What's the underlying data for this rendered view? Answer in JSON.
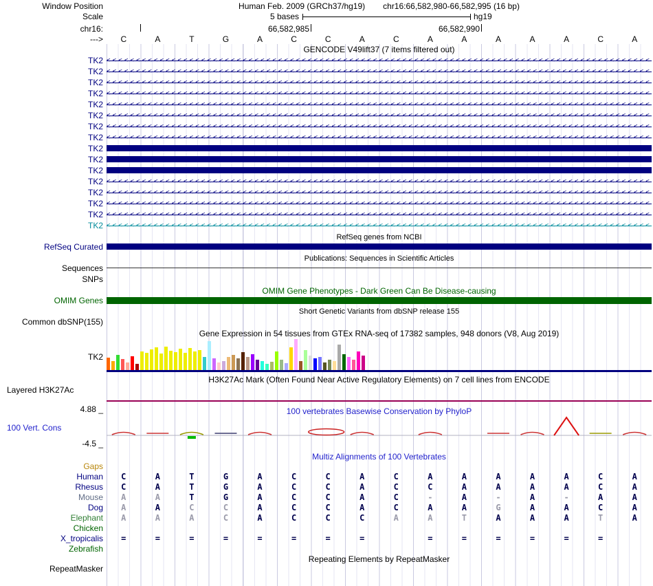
{
  "header": {
    "window_position_label": "Window Position",
    "assembly_title": "Human Feb. 2009 (GRCh37/hg19)",
    "position": "chr16:66,582,980-66,582,995 (16 bp)",
    "scale_label": "Scale",
    "scale_value": "5 bases",
    "assembly_short": "hg19",
    "chrom_label": "chr16:",
    "strand_label": "--->",
    "tick_labels": [
      "66,582,985",
      "66,582,990"
    ]
  },
  "columns": 16,
  "ruler_bases": [
    "C",
    "A",
    "T",
    "G",
    "A",
    "C",
    "C",
    "A",
    "C",
    "A",
    "A",
    "A",
    "A",
    "A",
    "C",
    "A"
  ],
  "colors": {
    "navy": "#000080",
    "teal": "#008b9b",
    "omim_green": "#006400",
    "title_blue": "#2222cc",
    "h3k27ac_line": "#990055",
    "gaps_label": "#b8860b",
    "letter": "#00004d",
    "letter_muted": "#9a9aaa"
  },
  "gencode": {
    "title": "GENCODE V49lift37 (7 items filtered out)",
    "rows": [
      {
        "label": "TK2",
        "style": "arrows",
        "color": "#000080"
      },
      {
        "label": "TK2",
        "style": "arrows",
        "color": "#000080"
      },
      {
        "label": "TK2",
        "style": "arrows",
        "color": "#000080"
      },
      {
        "label": "TK2",
        "style": "arrows",
        "color": "#000080"
      },
      {
        "label": "TK2",
        "style": "arrows",
        "color": "#000080"
      },
      {
        "label": "TK2",
        "style": "arrows",
        "color": "#000080"
      },
      {
        "label": "TK2",
        "style": "arrows",
        "color": "#000080"
      },
      {
        "label": "TK2",
        "style": "arrows",
        "color": "#000080"
      },
      {
        "label": "TK2",
        "style": "bar",
        "color": "#000080"
      },
      {
        "label": "TK2",
        "style": "bar",
        "color": "#000080"
      },
      {
        "label": "TK2",
        "style": "bar",
        "color": "#000080"
      },
      {
        "label": "TK2",
        "style": "arrows",
        "color": "#000080"
      },
      {
        "label": "TK2",
        "style": "arrows",
        "color": "#000080"
      },
      {
        "label": "TK2",
        "style": "arrows",
        "color": "#000080"
      },
      {
        "label": "TK2",
        "style": "arrows",
        "color": "#000080"
      },
      {
        "label": "TK2",
        "style": "arrows",
        "color": "#008b9b"
      }
    ]
  },
  "tracks": {
    "refseq": {
      "title": "RefSeq genes from NCBI",
      "label": "RefSeq Curated",
      "bar_color": "#000080"
    },
    "publications": {
      "title": "Publications: Sequences in Scientific Articles",
      "label": "Sequences"
    },
    "snps": {
      "label": "SNPs"
    },
    "omim": {
      "title": "OMIM Gene Phenotypes - Dark Green Can Be Disease-causing",
      "label": "OMIM Genes",
      "bar_color": "#006400"
    },
    "dbsnp": {
      "title": "Short Genetic Variants from dbSNP release 155",
      "label": "Common dbSNP(155)"
    },
    "gtex": {
      "title": "Gene Expression in 54 tissues from GTEx RNA-seq of 17382 samples, 948 donors (V8, Aug 2019)",
      "label": "TK2",
      "bars": [
        [
          18,
          "#FF6600"
        ],
        [
          13,
          "#FFAA00"
        ],
        [
          22,
          "#33DD33"
        ],
        [
          16,
          "#FF5555"
        ],
        [
          11,
          "#FFAA99"
        ],
        [
          20,
          "#FF0000"
        ],
        [
          9,
          "#AA0000"
        ],
        [
          27,
          "#EEEE00"
        ],
        [
          25,
          "#EEEE00"
        ],
        [
          30,
          "#EEEE00"
        ],
        [
          33,
          "#EEEE00"
        ],
        [
          24,
          "#EEEE00"
        ],
        [
          34,
          "#EEEE00"
        ],
        [
          28,
          "#EEEE00"
        ],
        [
          26,
          "#EEEE00"
        ],
        [
          31,
          "#EEEE00"
        ],
        [
          25,
          "#EEEE00"
        ],
        [
          32,
          "#EEEE00"
        ],
        [
          27,
          "#EEEE00"
        ],
        [
          29,
          "#EEEE00"
        ],
        [
          19,
          "#33CCCC"
        ],
        [
          42,
          "#AAEEFF"
        ],
        [
          17,
          "#CC66FF"
        ],
        [
          11,
          "#FFCCCC"
        ],
        [
          13,
          "#CCAADD"
        ],
        [
          19,
          "#EEBB77"
        ],
        [
          22,
          "#CC9955"
        ],
        [
          17,
          "#8B7355"
        ],
        [
          26,
          "#552200"
        ],
        [
          19,
          "#BB9988"
        ],
        [
          23,
          "#9900FF"
        ],
        [
          15,
          "#660099"
        ],
        [
          13,
          "#22FFDD"
        ],
        [
          9,
          "#33FFC2"
        ],
        [
          12,
          "#AABB66"
        ],
        [
          27,
          "#99FF00"
        ],
        [
          15,
          "#99BB88"
        ],
        [
          10,
          "#AAAAFF"
        ],
        [
          33,
          "#FFD700"
        ],
        [
          45,
          "#FFAAFF"
        ],
        [
          13,
          "#995522"
        ],
        [
          29,
          "#AAFF99"
        ],
        [
          21,
          "#DDDDDD"
        ],
        [
          17,
          "#0000FF"
        ],
        [
          19,
          "#7777FF"
        ],
        [
          11,
          "#555522"
        ],
        [
          15,
          "#778855"
        ],
        [
          13,
          "#FFDD99"
        ],
        [
          37,
          "#AAAAAA"
        ],
        [
          23,
          "#006600"
        ],
        [
          19,
          "#FF66FF"
        ],
        [
          15,
          "#FF5599"
        ],
        [
          27,
          "#FF00BB"
        ],
        [
          21,
          "#CC0088"
        ]
      ]
    },
    "h3k27ac": {
      "title": "H3K27Ac Mark (Often Found Near Active Regulatory Elements) on 7 cell lines from ENCODE",
      "label": "Layered H3K27Ac"
    },
    "phylop": {
      "title": "100 vertebrates Basewise Conservation by PhyloP",
      "label": "100 Vert. Cons",
      "max_label": "4.88 _",
      "min_label": "-4.5 _",
      "marks": [
        {
          "col": 1,
          "shape": "arc",
          "color": "#cc3333"
        },
        {
          "col": 2,
          "shape": "flat",
          "color": "#cc3333"
        },
        {
          "col": 3,
          "shape": "arc",
          "color": "#9a9a00",
          "blob": "#00bb00"
        },
        {
          "col": 4,
          "shape": "flat",
          "color": "#3c3c6e"
        },
        {
          "col": 5,
          "shape": "arc",
          "color": "#cc3333"
        },
        {
          "col": 6.95,
          "shape": "ellipse",
          "color": "#cc2222"
        },
        {
          "col": 8,
          "shape": "arc",
          "color": "#cc3333"
        },
        {
          "col": 10,
          "shape": "arc",
          "color": "#cc3333"
        },
        {
          "col": 12,
          "shape": "flat",
          "color": "#cc3333"
        },
        {
          "col": 13,
          "shape": "arc",
          "color": "#cc3333"
        },
        {
          "col": 14,
          "shape": "peak",
          "color": "#dd1111"
        },
        {
          "col": 15,
          "shape": "flat",
          "color": "#9a9a00"
        },
        {
          "col": 16,
          "shape": "arc",
          "color": "#cc3333"
        }
      ]
    },
    "multiz": {
      "title": "Multiz Alignments of 100 Vertebrates",
      "rows": [
        {
          "name": "Gaps",
          "color": "#b8860b",
          "seq": [
            "",
            "",
            "",
            "",
            "",
            "",
            "",
            "",
            "",
            "",
            "",
            "",
            "",
            "",
            "",
            ""
          ],
          "muted": []
        },
        {
          "name": "Human",
          "color": "#000080",
          "seq": [
            "C",
            "A",
            "T",
            "G",
            "A",
            "C",
            "C",
            "A",
            "C",
            "A",
            "A",
            "A",
            "A",
            "A",
            "C",
            "A"
          ],
          "muted": []
        },
        {
          "name": "Rhesus",
          "color": "#000080",
          "seq": [
            "C",
            "A",
            "T",
            "G",
            "A",
            "C",
            "C",
            "A",
            "C",
            "C",
            "A",
            "A",
            "A",
            "A",
            "C",
            "A"
          ],
          "muted": []
        },
        {
          "name": "Mouse",
          "color": "#5f6b85",
          "seq": [
            "A",
            "A",
            "T",
            "G",
            "A",
            "C",
            "C",
            "A",
            "C",
            "-",
            "A",
            "-",
            "A",
            "-",
            "A",
            "A"
          ],
          "muted": [
            0,
            1,
            9,
            11,
            13
          ]
        },
        {
          "name": "Dog",
          "color": "#000080",
          "seq": [
            "A",
            "A",
            "C",
            "C",
            "A",
            "C",
            "C",
            "A",
            "C",
            "A",
            "A",
            "G",
            "A",
            "A",
            "C",
            "A"
          ],
          "muted": [
            0,
            2,
            3,
            11
          ]
        },
        {
          "name": "Elephant",
          "color": "#2e7d32",
          "seq": [
            "A",
            "A",
            "A",
            "C",
            "A",
            "C",
            "C",
            "C",
            "A",
            "A",
            "T",
            "A",
            "A",
            "A",
            "T",
            "A"
          ],
          "muted": [
            0,
            1,
            2,
            3,
            8,
            9,
            10,
            14
          ]
        },
        {
          "name": "Chicken",
          "color": "#006400",
          "seq": [
            "",
            "",
            "",
            "",
            "",
            "",
            "",
            "",
            "",
            "",
            "",
            "",
            "",
            "",
            "",
            ""
          ],
          "muted": []
        },
        {
          "name": "X_tropicalis",
          "color": "#000080",
          "seq": [
            "=",
            "=",
            "=",
            "=",
            "=",
            "=",
            "=",
            "=",
            "",
            "=",
            "=",
            "=",
            "=",
            "=",
            "=",
            ""
          ],
          "muted": []
        },
        {
          "name": "Zebrafish",
          "color": "#006400",
          "seq": [
            "",
            "",
            "",
            "",
            "",
            "",
            "",
            "",
            "",
            "",
            "",
            "",
            "",
            "",
            "",
            ""
          ],
          "muted": []
        }
      ]
    },
    "repeatmasker": {
      "title": "Repeating Elements by RepeatMasker",
      "label": "RepeatMasker"
    }
  }
}
